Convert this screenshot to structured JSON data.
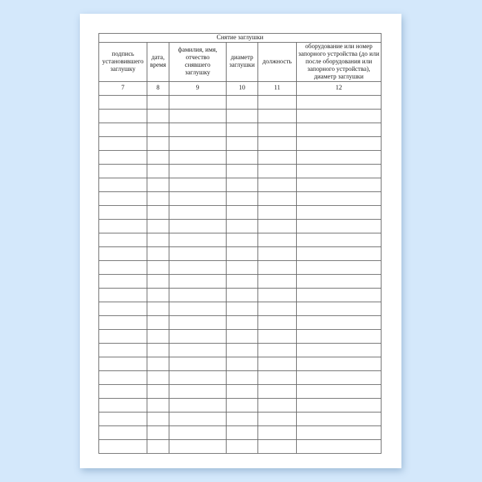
{
  "table": {
    "title": "Снятие заглушки",
    "columns": [
      {
        "label": "подпись установившего заглушку",
        "number": "7"
      },
      {
        "label": "дата, время",
        "number": "8"
      },
      {
        "label": "фамилия, имя, отчество снявшего заглушку",
        "number": "9"
      },
      {
        "label": "диаметр заглушки",
        "number": "10"
      },
      {
        "label": "должность",
        "number": "11"
      },
      {
        "label": "оборудование или номер запорного устройства (до или после оборудования или запорного устройства), диаметр заглушки",
        "number": "12"
      }
    ],
    "empty_rows": 26
  }
}
